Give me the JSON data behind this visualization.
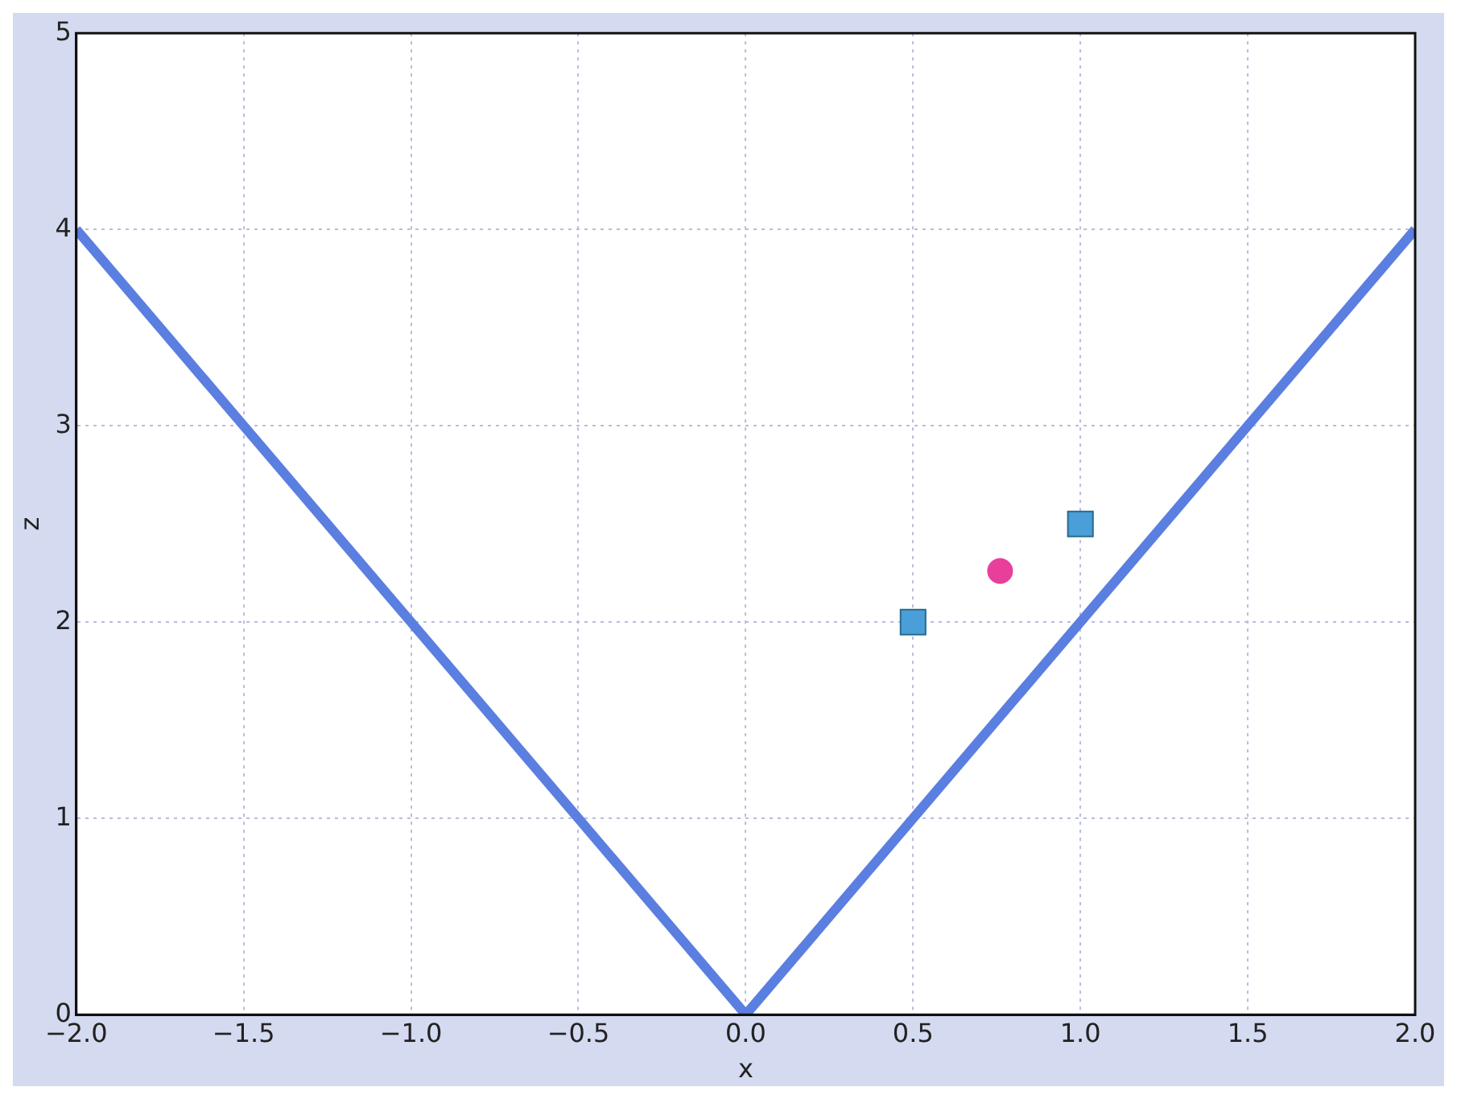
{
  "chart_data": {
    "type": "line",
    "xlabel": "x",
    "ylabel": "z",
    "xlim": [
      -2,
      2
    ],
    "ylim": [
      0,
      5
    ],
    "xticks": [
      {
        "value": -2,
        "label": "−2.0"
      },
      {
        "value": -1.5,
        "label": "−1.5"
      },
      {
        "value": -1,
        "label": "−1.0"
      },
      {
        "value": -0.5,
        "label": "−0.5"
      },
      {
        "value": 0,
        "label": "0.0"
      },
      {
        "value": 0.5,
        "label": "0.5"
      },
      {
        "value": 1,
        "label": "1.0"
      },
      {
        "value": 1.5,
        "label": "1.5"
      },
      {
        "value": 2,
        "label": "2.0"
      }
    ],
    "yticks": [
      0,
      1,
      2,
      3,
      4,
      5
    ],
    "grid": true,
    "legend": false,
    "series": [
      {
        "type": "line",
        "color": "#5b7fe0",
        "x": [
          -2,
          0,
          2
        ],
        "values": [
          4,
          0,
          4
        ],
        "marker": "none"
      },
      {
        "type": "scatter",
        "color": "#4a9fd8",
        "x": [
          0.5,
          1
        ],
        "values": [
          2,
          2.5
        ],
        "marker": "square"
      },
      {
        "type": "scatter",
        "color": "#e8409a",
        "x": [
          0.76
        ],
        "values": [
          2.26
        ],
        "marker": "circle"
      }
    ]
  }
}
